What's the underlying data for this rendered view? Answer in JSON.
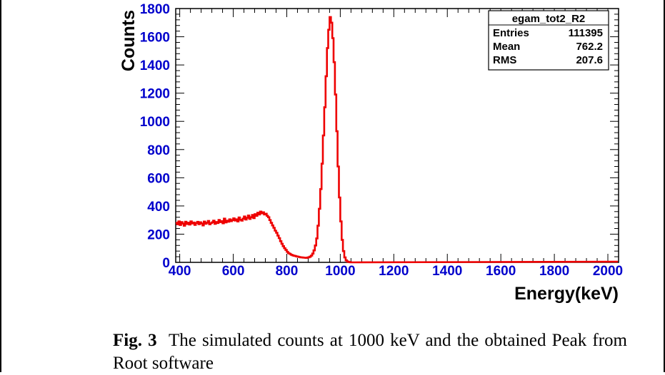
{
  "chart_data": {
    "type": "histogram",
    "title": "",
    "xlabel": "Energy(keV)",
    "ylabel": "Counts",
    "xlim": [
      385,
      2040
    ],
    "ylim": [
      0,
      1800
    ],
    "x_ticks": [
      400,
      600,
      800,
      1000,
      1200,
      1400,
      1600,
      1800,
      2000
    ],
    "y_ticks": [
      0,
      200,
      400,
      600,
      800,
      1000,
      1200,
      1400,
      1600,
      1800
    ],
    "grid": false,
    "series": [
      {
        "color": "#ee0000",
        "bin_width_keV": 5,
        "values_start_keV": 385,
        "values": [
          280,
          270,
          290,
          265,
          285,
          275,
          260,
          288,
          272,
          281,
          268,
          290,
          276,
          282,
          266,
          279,
          287,
          271,
          284,
          276,
          262,
          289,
          274,
          281,
          294,
          270,
          278,
          284,
          296,
          273,
          286,
          279,
          301,
          285,
          292,
          277,
          310,
          283,
          296,
          288,
          305,
          292,
          300,
          312,
          297,
          305,
          290,
          318,
          302,
          296,
          310,
          325,
          304,
          316,
          332,
          308,
          320,
          336,
          314,
          342,
          330,
          352,
          340,
          360,
          348,
          355,
          340,
          345,
          330,
          320,
          300,
          280,
          262,
          245,
          225,
          210,
          190,
          172,
          150,
          132,
          115,
          100,
          88,
          75,
          65,
          60,
          54,
          50,
          47,
          45,
          42,
          40,
          38,
          36,
          35,
          34,
          33,
          32,
          34,
          36,
          40,
          48,
          62,
          85,
          120,
          170,
          260,
          380,
          520,
          700,
          900,
          1100,
          1320,
          1520,
          1650,
          1740,
          1700,
          1590,
          1420,
          1190,
          930,
          680,
          460,
          290,
          160,
          80,
          35,
          14,
          6,
          3,
          1,
          0
        ]
      }
    ],
    "stats_box": {
      "name": "egam_tot2_R2",
      "rows": [
        {
          "label": "Entries",
          "value": "111395"
        },
        {
          "label": "Mean",
          "value": "762.2"
        },
        {
          "label": "RMS",
          "value": "207.6"
        }
      ]
    }
  },
  "caption": {
    "prefix": "Fig. 3",
    "text": "The simulated counts at 1000 keV and the obtained Peak from Root software"
  },
  "colors": {
    "axis_labels": "#0000cc",
    "line": "#ee0000",
    "frame": "#000000"
  }
}
